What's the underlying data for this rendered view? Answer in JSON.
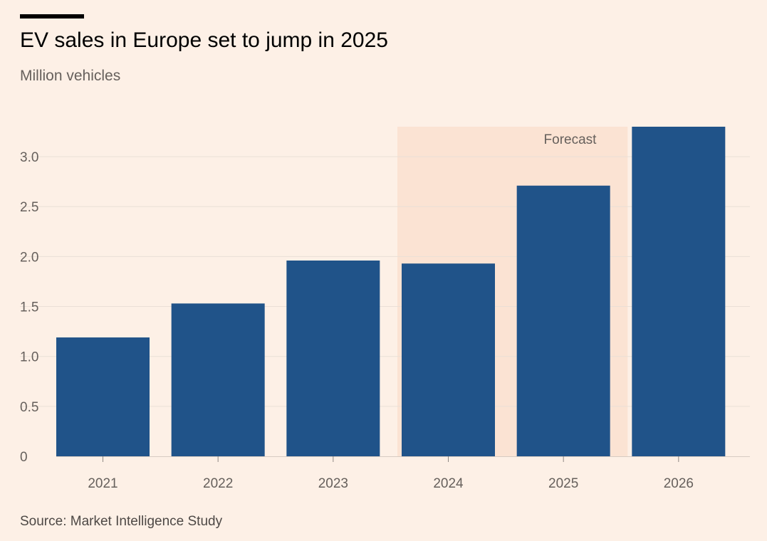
{
  "header": {
    "title": "EV sales in Europe set to jump in 2025",
    "subtitle": "Million vehicles"
  },
  "footer": {
    "source": "Source: Market Intelligence Study"
  },
  "colors": {
    "background": "#fdf0e6",
    "bar": "#205389",
    "forecast_band": "#fbe3d3",
    "grid": "#eadfd6"
  },
  "chart_data": {
    "type": "bar",
    "categories": [
      "2021",
      "2022",
      "2023",
      "2024",
      "2025",
      "2026"
    ],
    "values": [
      1.19,
      1.53,
      1.96,
      1.93,
      2.71,
      3.3
    ],
    "ylim": [
      0,
      3.3
    ],
    "yticks": [
      0,
      0.5,
      1.0,
      1.5,
      2.0,
      2.5,
      3.0
    ],
    "ytick_labels": [
      "0",
      "0.5",
      "1.0",
      "1.5",
      "2.0",
      "2.5",
      "3.0"
    ],
    "forecast": {
      "label": "Forecast",
      "from": "2024",
      "to": "2025"
    },
    "grid": true,
    "legend": "none"
  }
}
